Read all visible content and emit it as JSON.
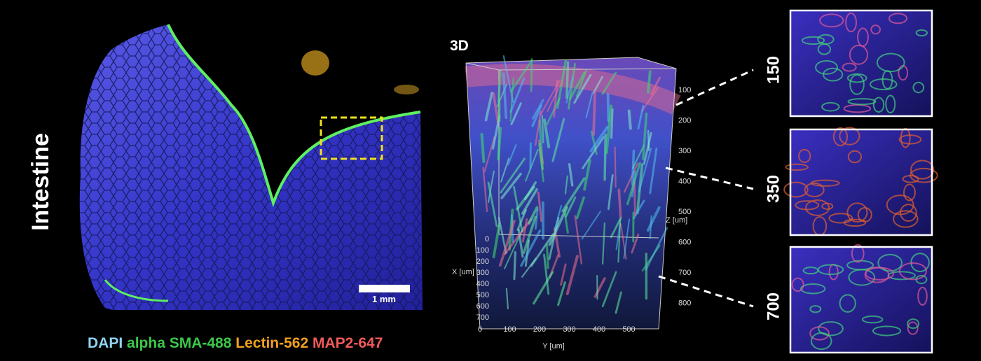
{
  "left_panel": {
    "label": "Intestine",
    "scale_bar": "1 mm",
    "legend": [
      "DAPI",
      "alpha SMA-488",
      "Lectin-562",
      "MAP2-647"
    ]
  },
  "center_panel": {
    "label": "3D",
    "z_axis": {
      "label": "Z [um]",
      "ticks": [
        100,
        200,
        300,
        400,
        500,
        600,
        700,
        800
      ]
    },
    "x_axis": {
      "label": "X [um]",
      "ticks": [
        0,
        100,
        200,
        300,
        400,
        500,
        600,
        700
      ]
    },
    "y_axis": {
      "label": "Y [um]",
      "ticks": [
        0,
        100,
        200,
        300,
        400,
        500
      ]
    }
  },
  "insets": [
    {
      "depth": 150
    },
    {
      "depth": 350
    },
    {
      "depth": 700
    }
  ]
}
